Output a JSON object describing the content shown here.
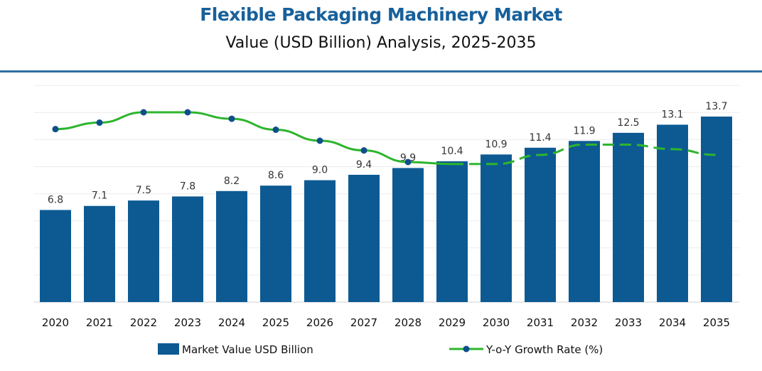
{
  "chart_data": {
    "type": "bar",
    "title": "Flexible Packaging Machinery Market",
    "subtitle": "Value (USD Billion) Analysis, 2025-2035",
    "categories": [
      "2020",
      "2021",
      "2022",
      "2023",
      "2024",
      "2025",
      "2026",
      "2027",
      "2028",
      "2029",
      "2030",
      "2031",
      "2032",
      "2033",
      "2034",
      "2035"
    ],
    "series": [
      {
        "name": "Market Value USD Billion",
        "type": "bar",
        "color": "#0d5a93",
        "values": [
          6.8,
          7.1,
          7.5,
          7.8,
          8.2,
          8.6,
          9.0,
          9.4,
          9.9,
          10.4,
          10.9,
          11.4,
          11.9,
          12.5,
          13.1,
          13.7
        ]
      },
      {
        "name": "Y-o-Y Growth Rate (%)",
        "type": "line",
        "color": "#2db52d",
        "marker_color": "#0d4f8b",
        "values": [
          5.14,
          5.24,
          5.4,
          5.4,
          5.3,
          5.13,
          4.96,
          4.81,
          4.63,
          4.6,
          4.6,
          4.74,
          4.9,
          4.9,
          4.83,
          4.74
        ]
      }
    ],
    "ylim": [
      0,
      16
    ],
    "grid": true,
    "legend": "bottom",
    "data_labels": true
  }
}
